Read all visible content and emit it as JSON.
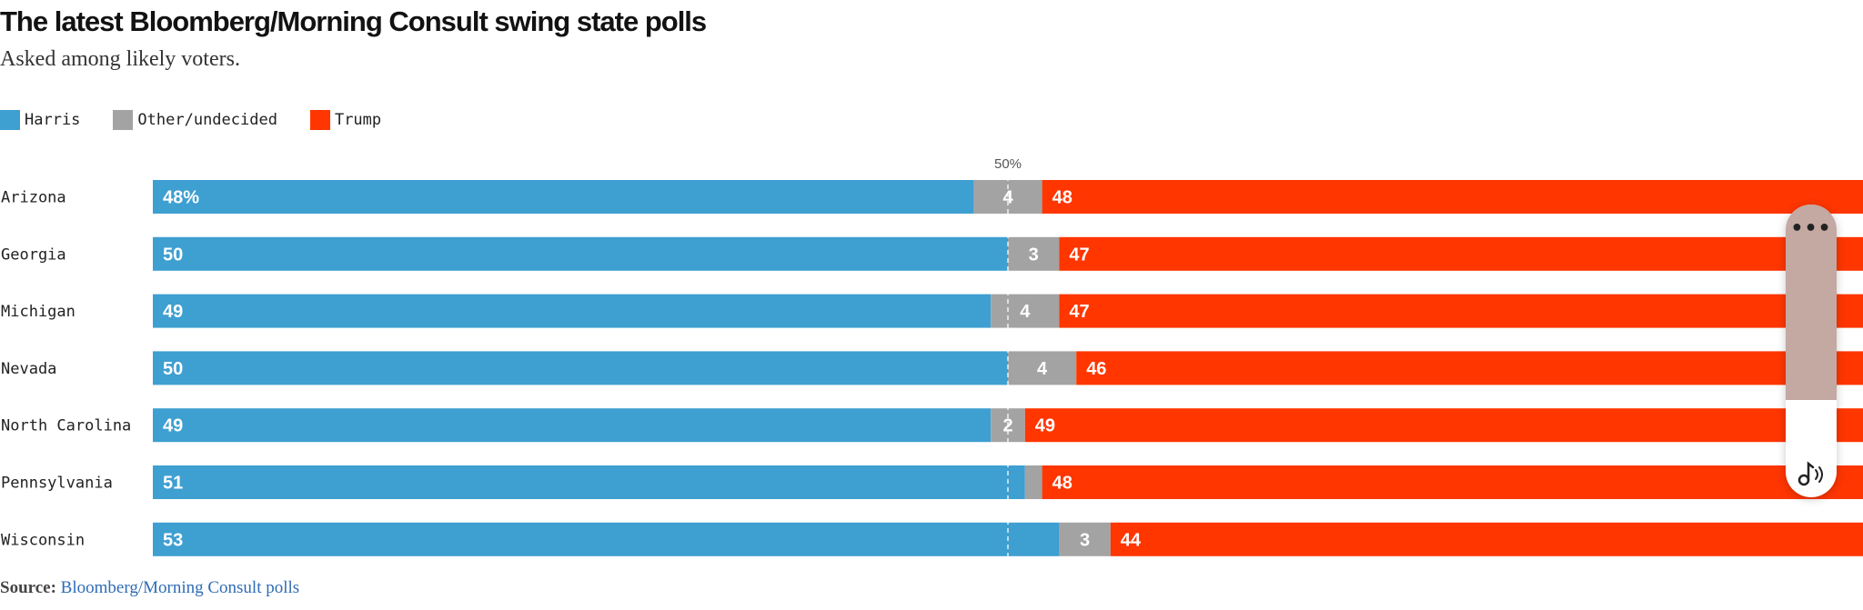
{
  "title": "The latest Bloomberg/Morning Consult swing state polls",
  "subtitle": "Asked among likely voters.",
  "legend": [
    {
      "label": "Harris",
      "color": "#3e9fd1"
    },
    {
      "label": "Other/undecided",
      "color": "#a3a3a3"
    },
    {
      "label": "Trump",
      "color": "#ff3600"
    }
  ],
  "source": {
    "label": "Source:",
    "link_text": "Bloomberg/Morning Consult polls"
  },
  "widget": {
    "more_icon": "more-horizontal-icon",
    "audio_icon": "music-note-sound-icon"
  },
  "chart_data": {
    "type": "bar",
    "orientation": "horizontal-stacked",
    "reference_line": {
      "value": 50,
      "label": "50%"
    },
    "categories": [
      "Arizona",
      "Georgia",
      "Michigan",
      "Nevada",
      "North Carolina",
      "Pennsylvania",
      "Wisconsin"
    ],
    "series": [
      {
        "name": "Harris",
        "color": "#3e9fd1",
        "values": [
          48,
          50,
          49,
          50,
          49,
          51,
          53
        ],
        "labels": [
          "48%",
          "50",
          "49",
          "50",
          "49",
          "51",
          "53"
        ]
      },
      {
        "name": "Other/undecided",
        "color": "#a3a3a3",
        "values": [
          4,
          3,
          4,
          4,
          2,
          1,
          3
        ],
        "labels": [
          "4",
          "3",
          "4",
          "4",
          "2",
          "",
          "3"
        ]
      },
      {
        "name": "Trump",
        "color": "#ff3600",
        "values": [
          48,
          47,
          47,
          46,
          49,
          48,
          44
        ],
        "labels": [
          "48",
          "47",
          "47",
          "46",
          "49",
          "48",
          "44"
        ]
      }
    ],
    "xlim": [
      0,
      100
    ],
    "grid": false
  }
}
